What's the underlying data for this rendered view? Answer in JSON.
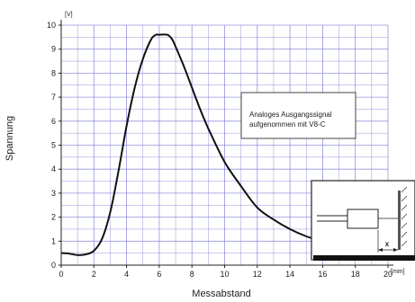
{
  "colors": {
    "grid": "#7a7ad6",
    "curve": "#111111",
    "axis": "#222222"
  },
  "chart_data": {
    "type": "line",
    "xlabel": "Messabstand",
    "ylabel": "Spannung",
    "x_unit": "[mm]",
    "y_unit": "[V]",
    "xlim": [
      0,
      20
    ],
    "ylim": [
      0,
      10
    ],
    "x_ticks": [
      "0",
      "2",
      "4",
      "6",
      "8",
      "10",
      "12",
      "14",
      "16",
      "18",
      "20"
    ],
    "y_ticks": [
      "0",
      "1",
      "2",
      "3",
      "4",
      "5",
      "6",
      "7",
      "8",
      "9",
      "10"
    ],
    "grid": true,
    "annotation": {
      "line1": "Analoges Ausgangssignal",
      "line2": "aufgenommen mit V8-C"
    },
    "inset": {
      "label": "x",
      "icon": "sensor-distance-measurement-diagram"
    },
    "series": [
      {
        "x": [
          0,
          0.5,
          1,
          1.5,
          2,
          2.5,
          3,
          3.5,
          4,
          4.5,
          5,
          5.5,
          5.8,
          6,
          6.5,
          6.8,
          7,
          7.5,
          8,
          8.5,
          9,
          10,
          11,
          12,
          13,
          14,
          15,
          16
        ],
        "y": [
          0.5,
          0.48,
          0.42,
          0.45,
          0.6,
          1.1,
          2.2,
          3.9,
          5.8,
          7.4,
          8.6,
          9.4,
          9.6,
          9.6,
          9.6,
          9.4,
          9.1,
          8.3,
          7.4,
          6.5,
          5.7,
          4.3,
          3.3,
          2.4,
          1.9,
          1.5,
          1.2,
          1.0
        ]
      }
    ]
  }
}
